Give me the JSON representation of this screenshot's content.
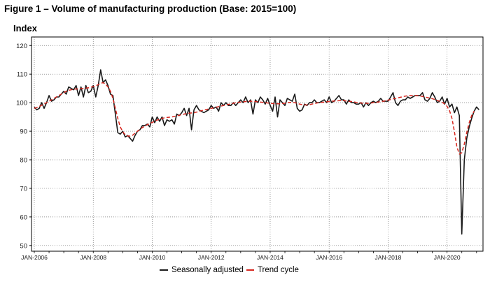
{
  "chart_data": {
    "type": "line",
    "title": "Figure 1 – Volume of manufacturing production (Base: 2015=100)",
    "ylabel": "Index",
    "xlabel": "",
    "ylim": [
      48,
      123
    ],
    "yticks": [
      50,
      60,
      70,
      80,
      90,
      100,
      110,
      120
    ],
    "x_start": "2006-01",
    "xtick_labels": [
      "JAN-2006",
      "JAN-2008",
      "JAN-2010",
      "JAN-2012",
      "JAN-2014",
      "JAN-2016",
      "JAN-2018",
      "JAN-2020"
    ],
    "xtick_month_index": [
      0,
      24,
      48,
      72,
      96,
      120,
      144,
      168
    ],
    "grid": "dotted",
    "legend_position": "bottom",
    "series": [
      {
        "name": "Seasonally adjusted",
        "color": "#1a1a1a",
        "style": "solid",
        "values": [
          98.5,
          97.5,
          98,
          100,
          98,
          100,
          102.5,
          100.5,
          101,
          102,
          102,
          103,
          104,
          103,
          105.5,
          105,
          104.5,
          106,
          102.5,
          105.5,
          102,
          106,
          103.5,
          104,
          106,
          102,
          106,
          111.5,
          107,
          108,
          106,
          103,
          102.5,
          96,
          89.5,
          89,
          90,
          88,
          88.5,
          87.5,
          86.5,
          88.5,
          90,
          90.5,
          92,
          92,
          92.5,
          91.5,
          95,
          93,
          95,
          93.5,
          95,
          92,
          94,
          93.5,
          94,
          92.5,
          96,
          95.5,
          96.5,
          98,
          95.5,
          98,
          90.5,
          97.5,
          99,
          97.5,
          97,
          96.5,
          97,
          97.5,
          99,
          98,
          98.5,
          97,
          100,
          99,
          100,
          99,
          99,
          100,
          99,
          100,
          101,
          100,
          102,
          100,
          101,
          96,
          101,
          100,
          102,
          101,
          99.5,
          101.5,
          99,
          97,
          102,
          95,
          101,
          100,
          99,
          101.5,
          101,
          100.5,
          103,
          98,
          97,
          97.5,
          99.5,
          99,
          100,
          100,
          101,
          100,
          100,
          100.5,
          101,
          100,
          102,
          100,
          100.5,
          101.5,
          102.5,
          101,
          101,
          99.5,
          101,
          100,
          100,
          99.5,
          99.5,
          100,
          98.5,
          100,
          99,
          100,
          100.5,
          100,
          100.5,
          101.5,
          100.5,
          100.5,
          100.5,
          102,
          103.5,
          100,
          99,
          100.5,
          101,
          101,
          102,
          101.5,
          102,
          102.5,
          102.5,
          102.5,
          103.5,
          101,
          100.5,
          101.5,
          103.5,
          102,
          100,
          100.5,
          102,
          99.5,
          101.5,
          98.5,
          99.5,
          96.5,
          98.5,
          95.5,
          54,
          80,
          87.5,
          91.5,
          94.5,
          97,
          98.5,
          97.5
        ]
      },
      {
        "name": "Trend cycle",
        "color": "#d7261e",
        "style": "dashed",
        "values": [
          98,
          98.3,
          98.7,
          99.1,
          99.5,
          100,
          100.5,
          101,
          101.5,
          102,
          102.5,
          103,
          103.5,
          104,
          104.3,
          104.5,
          104.7,
          104.8,
          104.8,
          104.9,
          105,
          105.1,
          105.2,
          105.4,
          105.6,
          105.9,
          106.3,
          106.8,
          107,
          106.5,
          105.5,
          104,
          101.5,
          98,
          94.5,
          91.5,
          89.8,
          88.8,
          88.3,
          88.3,
          88.6,
          89.3,
          90,
          90.7,
          91.3,
          91.8,
          92.3,
          92.7,
          93.1,
          93.5,
          93.9,
          94.2,
          94.5,
          94.7,
          94.8,
          94.9,
          95,
          95.2,
          95.4,
          95.6,
          95.8,
          96,
          96.2,
          96.3,
          96.4,
          96.5,
          96.7,
          96.9,
          97.2,
          97.4,
          97.6,
          97.8,
          98,
          98.2,
          98.4,
          98.6,
          98.8,
          99,
          99.2,
          99.4,
          99.6,
          99.8,
          100,
          100.1,
          100.2,
          100.3,
          100.4,
          100.5,
          100.5,
          100.5,
          100.4,
          100.3,
          100.2,
          100.1,
          100,
          99.9,
          99.8,
          99.7,
          99.6,
          99.6,
          99.6,
          99.7,
          99.8,
          100,
          100.1,
          100.1,
          100,
          99.8,
          99.5,
          99.3,
          99.2,
          99.2,
          99.3,
          99.5,
          99.7,
          99.9,
          100,
          100.1,
          100.2,
          100.3,
          100.4,
          100.5,
          100.6,
          100.6,
          100.7,
          100.7,
          100.7,
          100.6,
          100.5,
          100.4,
          100.3,
          100.1,
          100,
          99.9,
          99.8,
          99.8,
          99.8,
          99.9,
          100,
          100.1,
          100.2,
          100.4,
          100.5,
          100.7,
          100.9,
          101.1,
          101.3,
          101.5,
          101.7,
          101.9,
          102.1,
          102.3,
          102.4,
          102.5,
          102.5,
          102.5,
          102.4,
          102.3,
          102.2,
          102,
          101.8,
          101.6,
          101.4,
          101.1,
          100.8,
          100.5,
          100.1,
          99.6,
          98.7,
          97.2,
          94.5,
          89.8,
          84.5,
          82,
          82.5,
          85.5,
          89.5,
          93,
          95.5,
          97
        ]
      }
    ]
  }
}
